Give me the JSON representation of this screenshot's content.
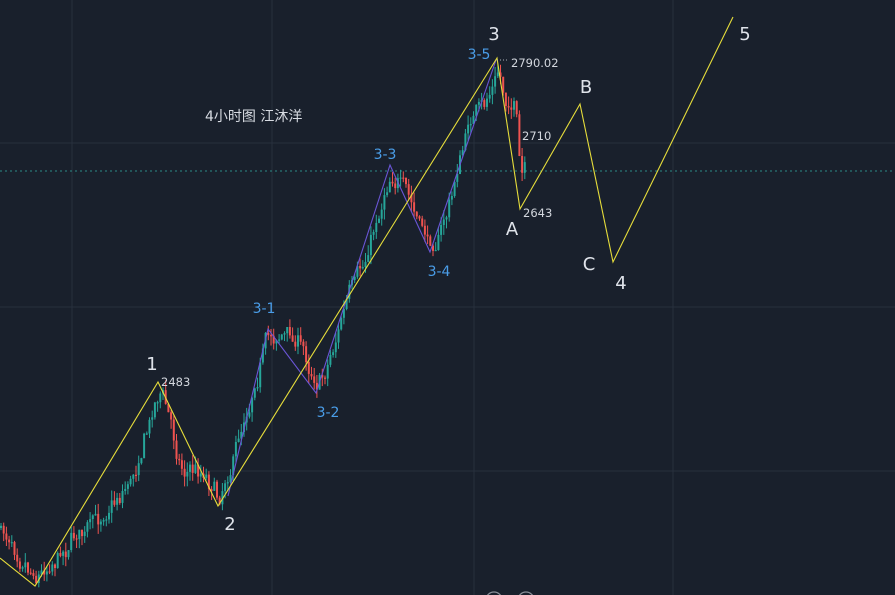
{
  "title": "4小时图  江沐洋",
  "colors": {
    "background": "#19202c",
    "grid": "#27303d",
    "candle_up": "#26a69a",
    "candle_down": "#ef5350",
    "main_wave_line": "#e6dd3b",
    "sub_wave_line": "#6a55d6",
    "wave_label": "#dfe3ea",
    "sub_wave_label": "#4a9de8",
    "current_price_line": "#2b8a86"
  },
  "chart_data": {
    "type": "candlestick",
    "title": "4小时图  江沐洋",
    "grid": true,
    "price_markers": [
      {
        "label": "2483",
        "value": 2483
      },
      {
        "label": "2790.02",
        "value": 2790.02
      },
      {
        "label": "2710",
        "value": 2710
      },
      {
        "label": "2643",
        "value": 2643
      }
    ],
    "main_waves": [
      {
        "label": "1",
        "value": 2483
      },
      {
        "label": "2"
      },
      {
        "label": "3",
        "value": 2790.02
      },
      {
        "label": "A",
        "value": 2643
      },
      {
        "label": "B"
      },
      {
        "label": "C"
      },
      {
        "label": "4"
      },
      {
        "label": "5"
      }
    ],
    "sub_waves": [
      {
        "label": "3-1"
      },
      {
        "label": "3-2"
      },
      {
        "label": "3-3"
      },
      {
        "label": "3-4"
      },
      {
        "label": "3-5",
        "value": 2790.02
      }
    ]
  }
}
